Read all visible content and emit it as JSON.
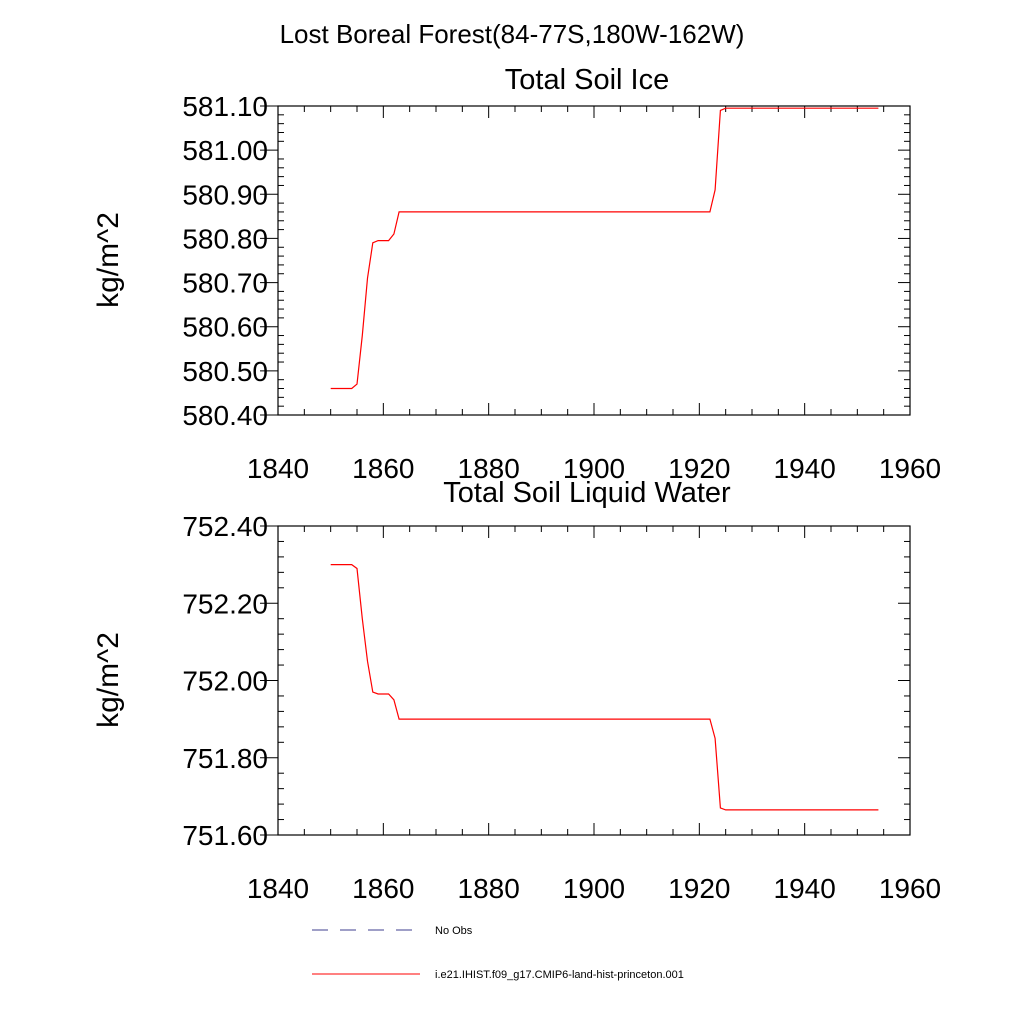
{
  "figure_title": "Lost Boreal Forest(84-77S,180W-162W)",
  "colors": {
    "model_line": "#ff0000",
    "obs_line": "#3f3f8f",
    "axis": "#000000"
  },
  "chart_data": [
    {
      "type": "line",
      "title": "Total Soil Ice",
      "xlabel": "",
      "ylabel": "kg/m^2",
      "xlim": [
        1840,
        1960
      ],
      "ylim": [
        580.4,
        581.1
      ],
      "x_ticks": [
        "1840",
        "1860",
        "1880",
        "1900",
        "1920",
        "1940",
        "1960"
      ],
      "y_ticks": [
        "580.40",
        "580.50",
        "580.60",
        "580.70",
        "580.80",
        "580.90",
        "581.00",
        "581.10"
      ],
      "series": [
        {
          "name": "i.e21.IHIST.f09_g17.CMIP6-land-hist-princeton.001",
          "x": [
            1850,
            1854,
            1855,
            1856,
            1857,
            1858,
            1859,
            1861,
            1862,
            1863,
            1870,
            1900,
            1922,
            1923,
            1924,
            1925,
            1954
          ],
          "y": [
            580.46,
            580.46,
            580.47,
            580.58,
            580.71,
            580.79,
            580.795,
            580.795,
            580.81,
            580.86,
            580.86,
            580.86,
            580.86,
            580.91,
            581.09,
            581.095,
            581.095
          ]
        }
      ]
    },
    {
      "type": "line",
      "title": "Total Soil Liquid Water",
      "xlabel": "",
      "ylabel": "kg/m^2",
      "xlim": [
        1840,
        1960
      ],
      "ylim": [
        751.6,
        752.4
      ],
      "x_ticks": [
        "1840",
        "1860",
        "1880",
        "1900",
        "1920",
        "1940",
        "1960"
      ],
      "y_ticks": [
        "751.60",
        "751.80",
        "752.00",
        "752.20",
        "752.40"
      ],
      "series": [
        {
          "name": "i.e21.IHIST.f09_g17.CMIP6-land-hist-princeton.001",
          "x": [
            1850,
            1854,
            1855,
            1856,
            1857,
            1858,
            1859,
            1861,
            1862,
            1863,
            1870,
            1900,
            1922,
            1923,
            1924,
            1925,
            1954
          ],
          "y": [
            752.3,
            752.3,
            752.29,
            752.16,
            752.05,
            751.97,
            751.965,
            751.965,
            751.95,
            751.9,
            751.9,
            751.9,
            751.9,
            751.85,
            751.67,
            751.665,
            751.665
          ]
        }
      ]
    }
  ],
  "legend": [
    {
      "label": "No Obs",
      "style": "dashed"
    },
    {
      "label": "i.e21.IHIST.f09_g17.CMIP6-land-hist-princeton.001",
      "style": "solid"
    }
  ]
}
